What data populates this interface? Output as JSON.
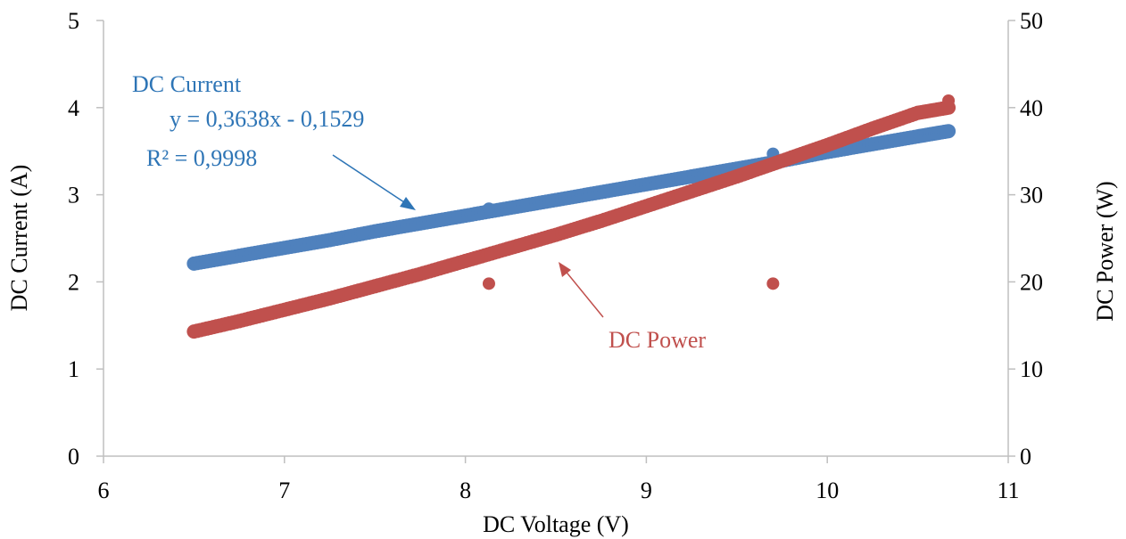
{
  "chart_data": {
    "type": "scatter",
    "title": "",
    "xlabel": "DC Voltage (V)",
    "ylabel_left": "DC Current (A)",
    "ylabel_right": "DC  Power (W)",
    "xlim": [
      6,
      11
    ],
    "ylim_left": [
      0,
      5
    ],
    "ylim_right": [
      0,
      50
    ],
    "x_ticks": [
      "6",
      "7",
      "8",
      "9",
      "10",
      "11"
    ],
    "y_left_ticks": [
      "0",
      "1",
      "2",
      "3",
      "4",
      "5"
    ],
    "y_right_ticks": [
      "0",
      "10",
      "20",
      "30",
      "40",
      "50"
    ],
    "grid": false,
    "series": [
      {
        "name": "DC Current",
        "axis": "left",
        "color": "#4f81bd",
        "points": [
          [
            6.5,
            2.21
          ],
          [
            6.75,
            2.3
          ],
          [
            7.0,
            2.39
          ],
          [
            7.25,
            2.48
          ],
          [
            7.5,
            2.58
          ],
          [
            7.75,
            2.67
          ],
          [
            8.0,
            2.76
          ],
          [
            8.25,
            2.85
          ],
          [
            8.5,
            2.94
          ],
          [
            8.75,
            3.03
          ],
          [
            9.0,
            3.12
          ],
          [
            9.25,
            3.21
          ],
          [
            9.5,
            3.3
          ],
          [
            9.75,
            3.39
          ],
          [
            10.0,
            3.49
          ],
          [
            10.25,
            3.58
          ],
          [
            10.5,
            3.67
          ],
          [
            10.67,
            3.73
          ]
        ],
        "outliers": [
          [
            9.7,
            3.47
          ],
          [
            8.13,
            2.84
          ],
          [
            7.43,
            2.56
          ]
        ]
      },
      {
        "name": "DC Power",
        "axis": "right",
        "color": "#c0504d",
        "points": [
          [
            6.5,
            14.3
          ],
          [
            6.75,
            15.5
          ],
          [
            7.0,
            16.8
          ],
          [
            7.25,
            18.1
          ],
          [
            7.5,
            19.5
          ],
          [
            7.75,
            20.9
          ],
          [
            8.0,
            22.4
          ],
          [
            8.25,
            23.9
          ],
          [
            8.5,
            25.4
          ],
          [
            8.75,
            27.0
          ],
          [
            9.0,
            28.7
          ],
          [
            9.25,
            30.4
          ],
          [
            9.5,
            32.1
          ],
          [
            9.75,
            33.9
          ],
          [
            10.0,
            35.7
          ],
          [
            10.25,
            37.6
          ],
          [
            10.5,
            39.4
          ],
          [
            10.67,
            40.0
          ]
        ],
        "outliers": [
          [
            8.13,
            19.8
          ],
          [
            9.7,
            19.8
          ],
          [
            10.67,
            40.8
          ]
        ]
      }
    ],
    "annotations": {
      "current_label": "DC Current",
      "equation": "y = 0,3638x - 0,1529",
      "r_squared": "R² = 0,9998",
      "power_label": "DC Power"
    }
  }
}
